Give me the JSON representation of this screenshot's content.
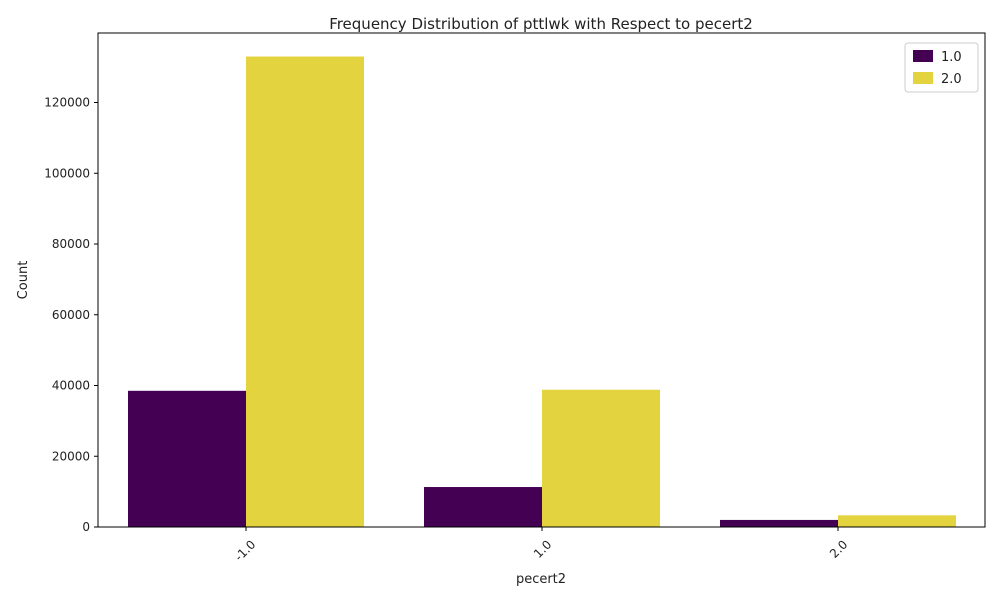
{
  "chart_data": {
    "type": "bar",
    "title": "Frequency Distribution of pttlwk with Respect to pecert2",
    "xlabel": "pecert2",
    "ylabel": "Count",
    "categories": [
      "-1.0",
      "1.0",
      "2.0"
    ],
    "series": [
      {
        "name": "1.0",
        "color": "#440154",
        "values": [
          38500,
          11300,
          2000
        ]
      },
      {
        "name": "2.0",
        "color": "#e3d33e",
        "values": [
          133000,
          38800,
          3300
        ]
      }
    ],
    "ylim": [
      0,
      139650
    ],
    "yticks": [
      0,
      20000,
      40000,
      60000,
      80000,
      100000,
      120000
    ],
    "grid": false,
    "legend_position": "top-right",
    "x_tick_rotation": "45 degrees"
  }
}
